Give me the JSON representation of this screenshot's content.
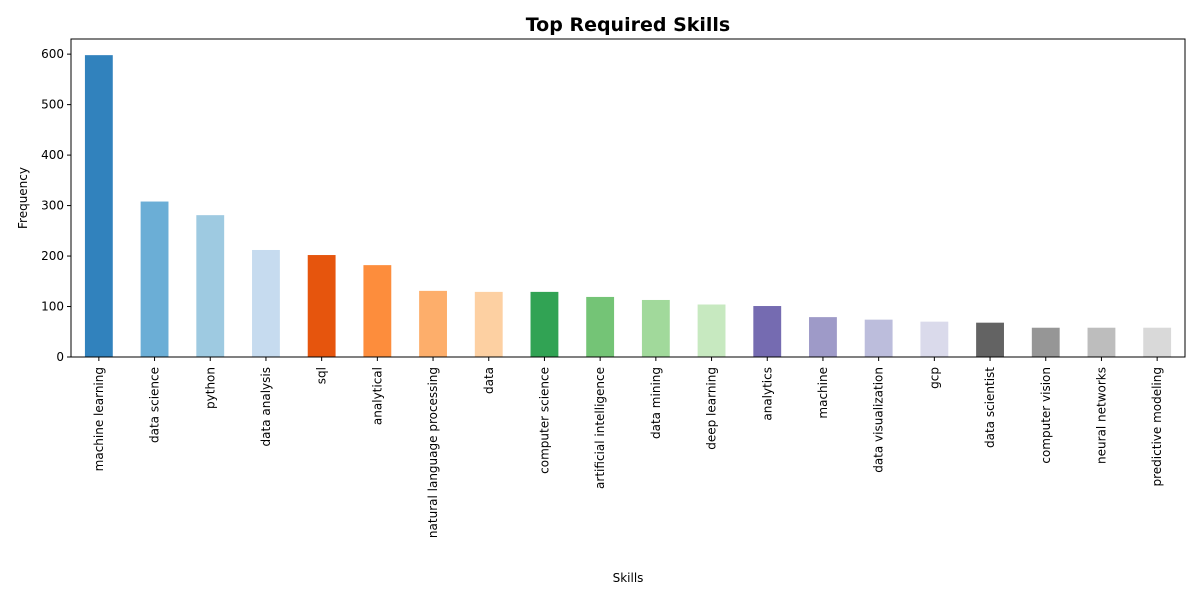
{
  "chart_data": {
    "type": "bar",
    "title": "Top Required Skills",
    "xlabel": "Skills",
    "ylabel": "Frequency",
    "ylim": [
      0,
      630
    ],
    "yticks": [
      0,
      100,
      200,
      300,
      400,
      500,
      600
    ],
    "grid": false,
    "categories": [
      "machine learning",
      "data science",
      "python",
      "data analysis",
      "sql",
      "analytical",
      "natural language processing",
      "data",
      "computer science",
      "artificial intelligence",
      "data mining",
      "deep learning",
      "analytics",
      "machine",
      "data visualization",
      "gcp",
      "data scientist",
      "computer vision",
      "neural networks",
      "predictive modeling"
    ],
    "values": [
      598,
      308,
      281,
      212,
      202,
      182,
      131,
      129,
      129,
      119,
      113,
      104,
      101,
      79,
      74,
      70,
      68,
      58,
      58,
      58
    ],
    "colors": [
      "#3182bd",
      "#6baed6",
      "#9ecae1",
      "#c6dbef",
      "#e6550d",
      "#fd8d3c",
      "#fdae6b",
      "#fdd0a2",
      "#31a354",
      "#74c476",
      "#a1d99b",
      "#c7e9c0",
      "#756bb1",
      "#9e9ac8",
      "#bcbddc",
      "#dadaeb",
      "#636363",
      "#969696",
      "#bdbdbd",
      "#d9d9d9"
    ]
  }
}
